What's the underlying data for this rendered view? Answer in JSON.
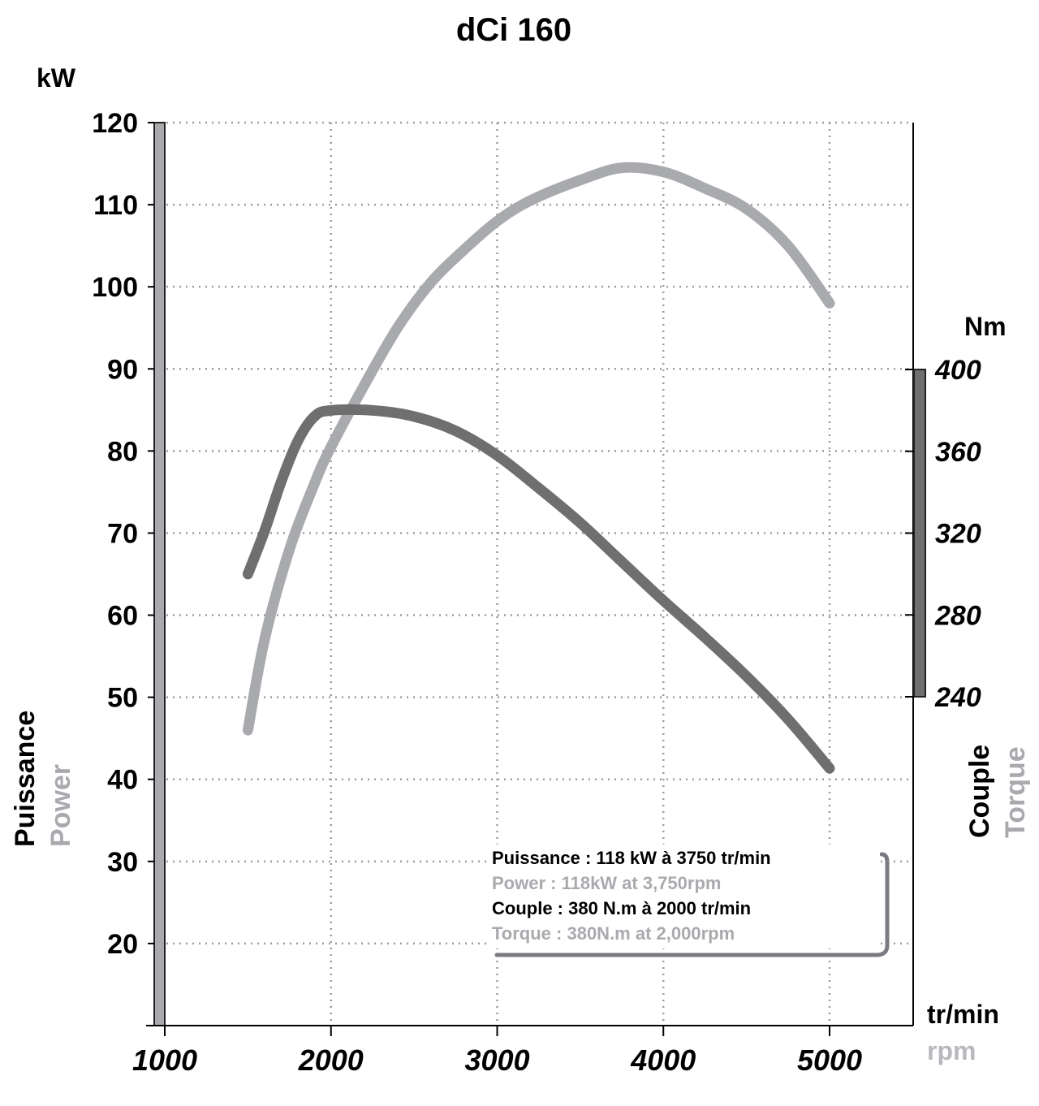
{
  "chart_data": {
    "type": "line",
    "title": "dCi 160",
    "left_axis": {
      "unit": "kW",
      "label_fr": "Puissance",
      "label_en": "Power",
      "range": [
        10,
        120
      ],
      "ticks": [
        120,
        110,
        100,
        90,
        80,
        70,
        60,
        50,
        40,
        30,
        20
      ]
    },
    "right_axis": {
      "unit": "Nm",
      "label_fr": "Couple",
      "label_en": "Torque",
      "range": [
        240,
        400
      ],
      "ticks": [
        400,
        360,
        320,
        280,
        240
      ]
    },
    "x_axis": {
      "unit_fr": "tr/min",
      "unit_en": "rpm",
      "range": [
        1000,
        5500
      ],
      "ticks": [
        1000,
        2000,
        3000,
        4000,
        5000
      ]
    },
    "grid": true,
    "series": [
      {
        "axis": "left",
        "color": "#a9aaae",
        "x": [
          1500,
          1600,
          1750,
          1900,
          2000,
          2200,
          2400,
          2600,
          2800,
          3000,
          3200,
          3500,
          3750,
          4000,
          4250,
          4500,
          4750,
          5000
        ],
        "y": [
          46,
          57,
          68,
          76,
          80.5,
          88,
          95,
          100.5,
          104.5,
          108,
          110.5,
          113,
          114.5,
          114,
          112,
          109.5,
          105,
          98
        ]
      },
      {
        "axis": "right",
        "color": "#6f6f6f",
        "x": [
          1500,
          1600,
          1700,
          1800,
          1900,
          2000,
          2250,
          2500,
          2750,
          3000,
          3250,
          3500,
          3750,
          4000,
          4250,
          4500,
          4750,
          5000
        ],
        "y": [
          300,
          321,
          345,
          365,
          377,
          380,
          380,
          377,
          370,
          358,
          342,
          325,
          306,
          287,
          269,
          250,
          229,
          205
        ]
      }
    ],
    "annotations": [
      {
        "text": "Puissance : 118 kW à 3750 tr/min",
        "color": "#000000"
      },
      {
        "text": "Power : 118kW at 3,750rpm",
        "color": "#a9aaae"
      },
      {
        "text": "Couple : 380 N.m à 2000 tr/min",
        "color": "#000000"
      },
      {
        "text": "Torque : 380N.m at 2,000rpm",
        "color": "#a9aaae"
      }
    ]
  }
}
